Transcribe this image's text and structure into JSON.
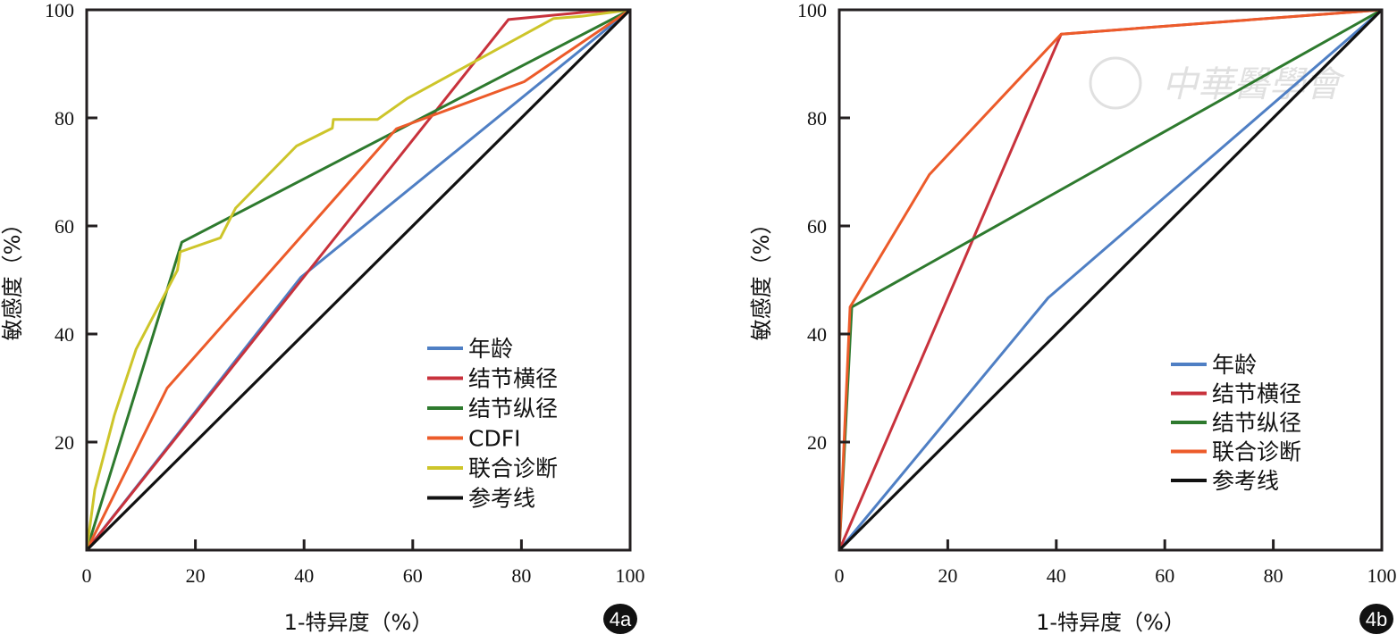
{
  "chart_data": [
    {
      "type": "line",
      "panel_label": "4a",
      "xlabel": "1-特异度（%）",
      "ylabel": "敏感度（%）",
      "xlim": [
        0,
        100
      ],
      "ylim": [
        0,
        100
      ],
      "xticks": [
        "0",
        "20",
        "40",
        "60",
        "80",
        "100"
      ],
      "yticks": [
        "20",
        "40",
        "60",
        "80",
        "100"
      ],
      "legend_position": "bottom-right",
      "series": [
        {
          "name": "年龄",
          "color": "#4f7fc4",
          "x": [
            0,
            39.4,
            100
          ],
          "y": [
            0,
            50.5,
            100
          ]
        },
        {
          "name": "结节横径",
          "color": "#c8323c",
          "x": [
            0,
            77.6,
            92,
            100
          ],
          "y": [
            0,
            98.2,
            99.6,
            100
          ]
        },
        {
          "name": "结节纵径",
          "color": "#2e7a2e",
          "x": [
            0,
            17.5,
            100
          ],
          "y": [
            0,
            57,
            100
          ]
        },
        {
          "name": "CDFI",
          "color": "#ec5b2a",
          "x": [
            0,
            14.8,
            57,
            80.5,
            100
          ],
          "y": [
            0,
            30,
            78,
            86.7,
            100
          ]
        },
        {
          "name": "联合诊断",
          "color": "#cdc52a",
          "x": [
            0,
            1.5,
            5.1,
            9.1,
            16.7,
            17.2,
            24.6,
            27.4,
            38.6,
            45.2,
            45.4,
            53.5,
            59,
            85.9,
            91,
            100
          ],
          "y": [
            0,
            11.2,
            25,
            37.2,
            51.8,
            55.2,
            57.8,
            63.3,
            74.8,
            78.1,
            79.7,
            79.7,
            83.6,
            98.4,
            98.8,
            100
          ]
        },
        {
          "name": "参考线",
          "color": "#111111",
          "x": [
            0,
            100
          ],
          "y": [
            0,
            100
          ]
        }
      ]
    },
    {
      "type": "line",
      "panel_label": "4b",
      "xlabel": "1-特异度（%）",
      "ylabel": "敏感度（%）",
      "xlim": [
        0,
        100
      ],
      "ylim": [
        0,
        100
      ],
      "xticks": [
        "0",
        "20",
        "40",
        "60",
        "80",
        "100"
      ],
      "yticks": [
        "20",
        "40",
        "60",
        "80",
        "100"
      ],
      "legend_position": "bottom-right",
      "watermark": "中華醫學會",
      "series": [
        {
          "name": "年龄",
          "color": "#4f7fc4",
          "x": [
            0,
            38.5,
            100
          ],
          "y": [
            0,
            46.7,
            100
          ]
        },
        {
          "name": "结节横径",
          "color": "#c8323c",
          "x": [
            0,
            40.9,
            100
          ],
          "y": [
            0,
            95.5,
            100
          ]
        },
        {
          "name": "结节纵径",
          "color": "#2e7a2e",
          "x": [
            0,
            2.3,
            100
          ],
          "y": [
            0,
            45,
            100
          ]
        },
        {
          "name": "联合诊断",
          "color": "#ec5b2a",
          "x": [
            0,
            2,
            16.6,
            40.9,
            100
          ],
          "y": [
            0,
            45,
            69.5,
            95.5,
            100
          ]
        },
        {
          "name": "参考线",
          "color": "#111111",
          "x": [
            0,
            100
          ],
          "y": [
            0,
            100
          ]
        }
      ]
    }
  ]
}
